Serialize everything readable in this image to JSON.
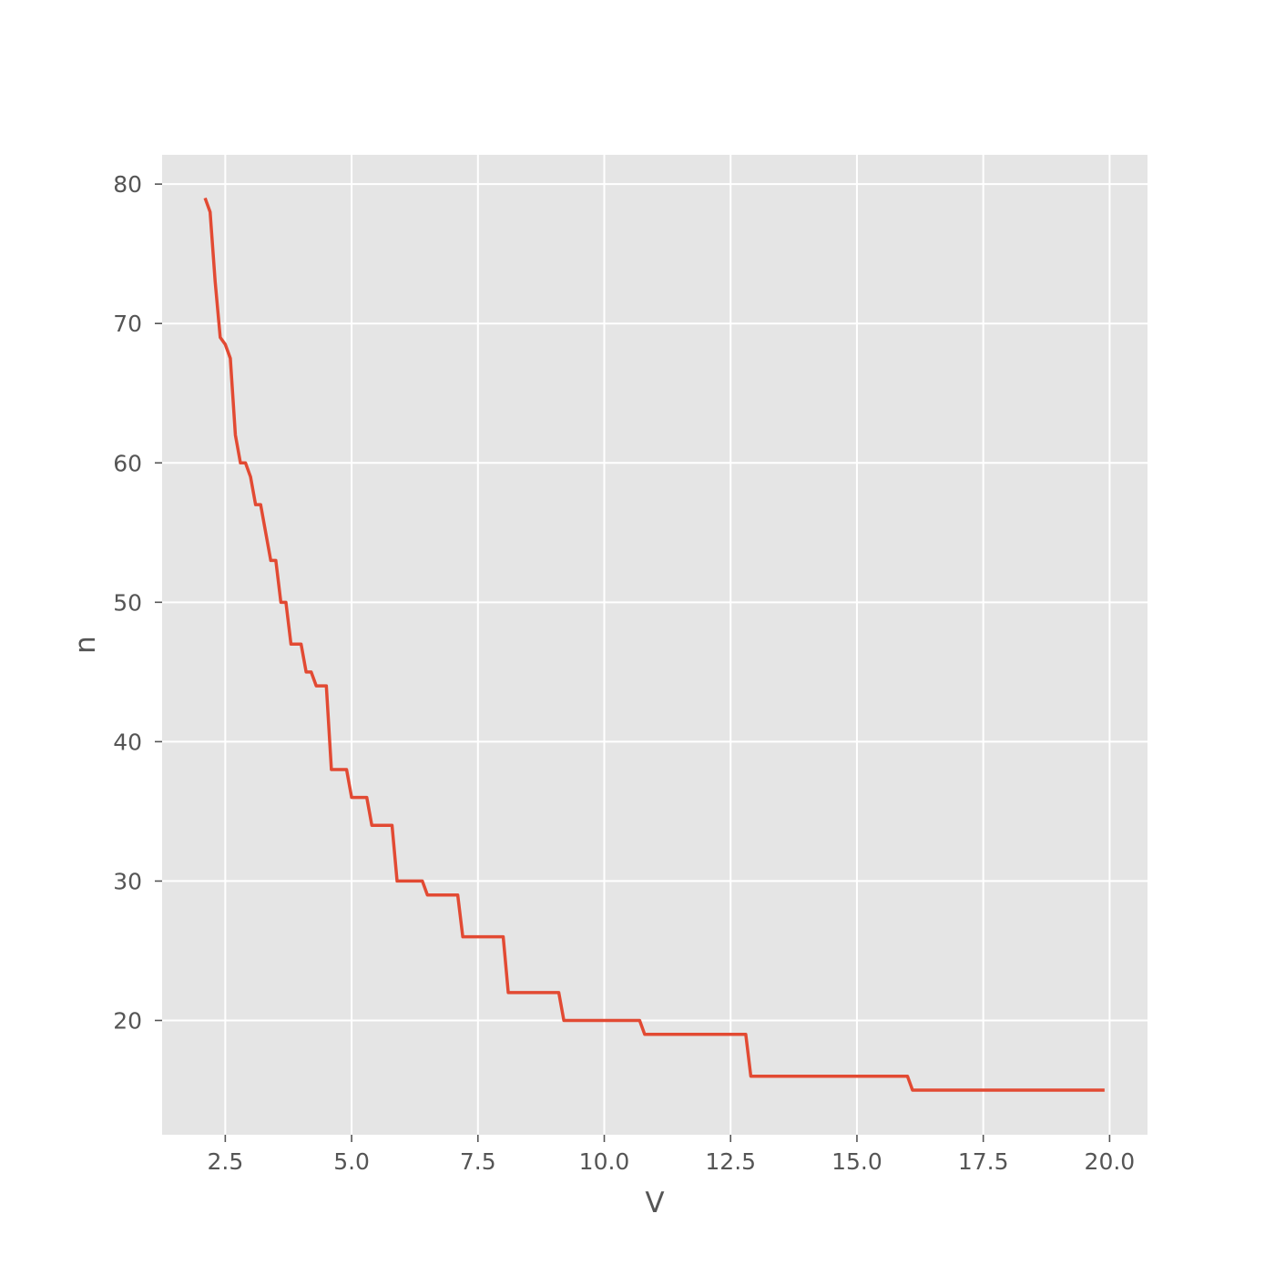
{
  "chart_data": {
    "type": "line",
    "title": "",
    "xlabel": "V",
    "ylabel": "n",
    "xlim": [
      1.25,
      20.75
    ],
    "ylim": [
      11.8,
      82.1
    ],
    "xticks": [
      2.5,
      5.0,
      7.5,
      10.0,
      12.5,
      15.0,
      17.5,
      20.0
    ],
    "xtick_labels": [
      "2.5",
      "5.0",
      "7.5",
      "10.0",
      "12.5",
      "15.0",
      "17.5",
      "20.0"
    ],
    "yticks": [
      20,
      30,
      40,
      50,
      60,
      70,
      80
    ],
    "ytick_labels": [
      "20",
      "30",
      "40",
      "50",
      "60",
      "70",
      "80"
    ],
    "grid": true,
    "style": "ggplot",
    "colors": {
      "line": "#E24A33",
      "background": "#E5E5E5",
      "grid": "#FFFFFF",
      "text": "#555555"
    },
    "series": [
      {
        "points": [
          [
            2.1,
            79
          ],
          [
            2.2,
            78
          ],
          [
            2.3,
            73
          ],
          [
            2.4,
            69
          ],
          [
            2.5,
            68.5
          ],
          [
            2.6,
            67.5
          ],
          [
            2.7,
            62
          ],
          [
            2.8,
            60
          ],
          [
            2.9,
            60
          ],
          [
            3.0,
            59
          ],
          [
            3.1,
            57
          ],
          [
            3.2,
            57
          ],
          [
            3.3,
            55
          ],
          [
            3.4,
            53
          ],
          [
            3.5,
            53
          ],
          [
            3.6,
            50
          ],
          [
            3.7,
            50
          ],
          [
            3.8,
            47
          ],
          [
            3.9,
            47
          ],
          [
            4.0,
            47
          ],
          [
            4.1,
            45
          ],
          [
            4.2,
            45
          ],
          [
            4.3,
            44
          ],
          [
            4.4,
            44
          ],
          [
            4.5,
            44
          ],
          [
            4.6,
            38
          ],
          [
            4.7,
            38
          ],
          [
            4.8,
            38
          ],
          [
            4.9,
            38
          ],
          [
            5.0,
            36
          ],
          [
            5.3,
            36
          ],
          [
            5.4,
            34
          ],
          [
            5.8,
            34
          ],
          [
            5.9,
            30
          ],
          [
            6.4,
            30
          ],
          [
            6.5,
            29
          ],
          [
            7.1,
            29
          ],
          [
            7.2,
            26
          ],
          [
            8.0,
            26
          ],
          [
            8.1,
            22
          ],
          [
            9.1,
            22
          ],
          [
            9.2,
            20
          ],
          [
            10.7,
            20
          ],
          [
            10.8,
            19
          ],
          [
            12.8,
            19
          ],
          [
            12.9,
            16
          ],
          [
            16.0,
            16
          ],
          [
            16.1,
            15
          ],
          [
            19.9,
            15
          ]
        ]
      }
    ]
  }
}
